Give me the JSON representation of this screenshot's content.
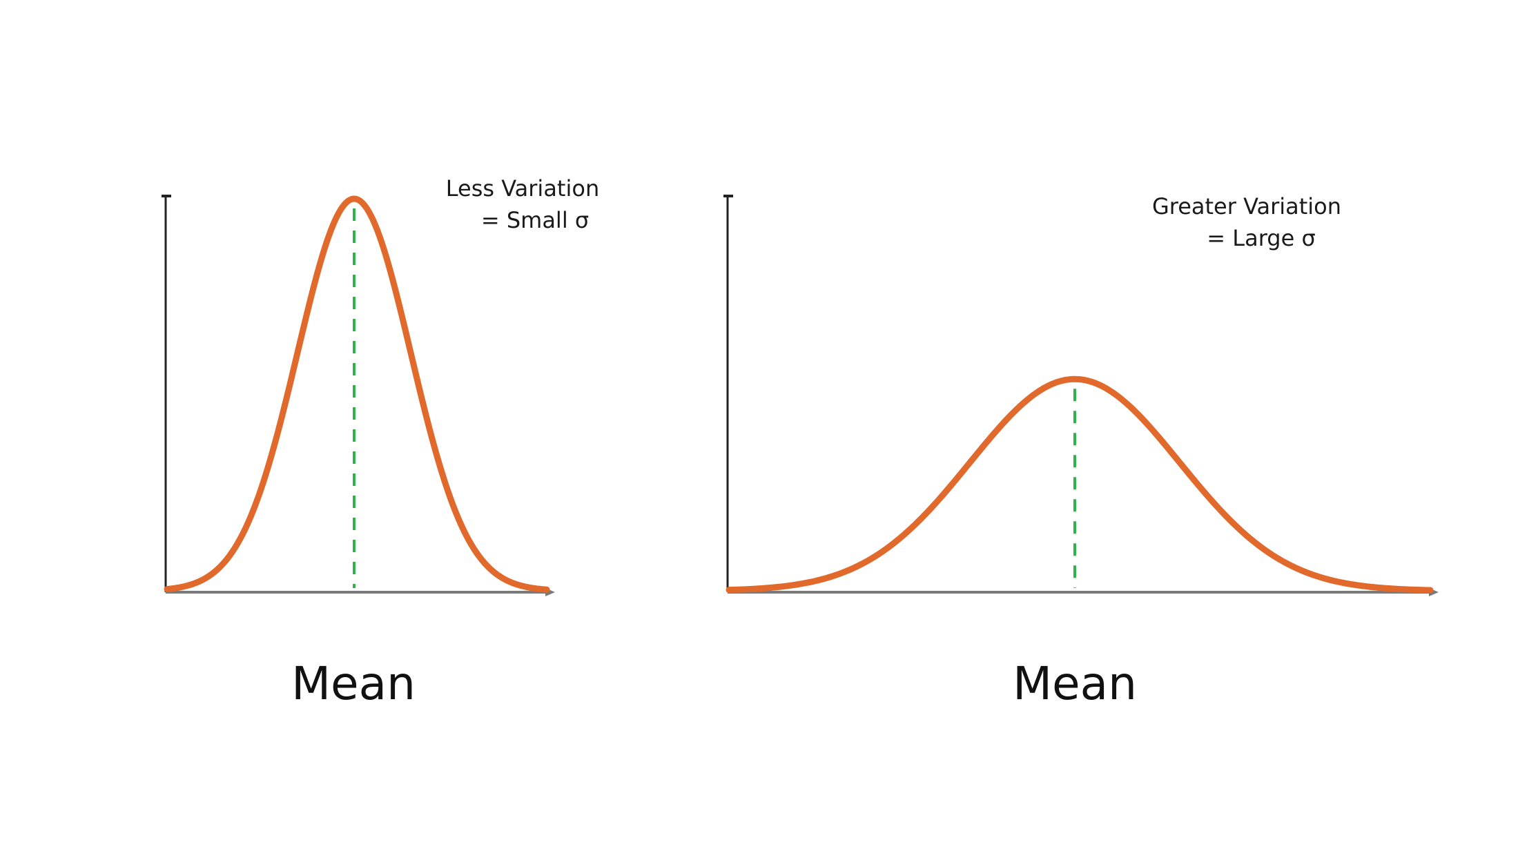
{
  "chart_data": [
    {
      "type": "line",
      "title": "",
      "xlabel": "Mean",
      "ylabel": "",
      "annotation_lines": [
        "Less Variation",
        "= Small σ"
      ],
      "grid": false,
      "series": [
        {
          "distribution": "normal",
          "mean": 0,
          "sigma": 1,
          "relative_peak": 1.0
        }
      ],
      "mean_marker": {
        "style": "dashed",
        "x": 0
      },
      "colors": {
        "curve": "#e0692b",
        "mean_line": "#2db34a",
        "axes": "#222222"
      }
    },
    {
      "type": "line",
      "title": "",
      "xlabel": "Mean",
      "ylabel": "",
      "annotation_lines": [
        "Greater Variation",
        "= Large σ"
      ],
      "grid": false,
      "series": [
        {
          "distribution": "normal",
          "mean": 0,
          "sigma": 2,
          "relative_peak": 0.54
        }
      ],
      "mean_marker": {
        "style": "dashed",
        "x": 0
      },
      "colors": {
        "curve": "#e0692b",
        "mean_line": "#2db34a",
        "axes": "#222222"
      }
    }
  ]
}
